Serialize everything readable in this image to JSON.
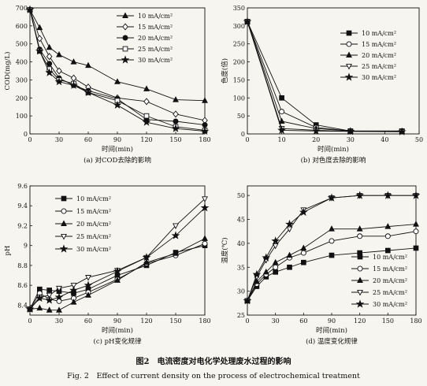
{
  "figure": {
    "caption_cn": "图2　电流密度对电化学处理废水过程的影响",
    "caption_en": "Fig. 2　Effect of current density on the process of electrochemical treatment"
  },
  "chart_data": [
    {
      "id": "a",
      "type": "line",
      "caption": "(a) 对COD去除的影响",
      "xlabel": "时间(min)",
      "ylabel": "COD(mg/L)",
      "xlim": [
        0,
        180
      ],
      "ylim": [
        0,
        700
      ],
      "xticks": [
        0,
        30,
        60,
        90,
        120,
        150,
        180
      ],
      "yticks": [
        0,
        100,
        200,
        300,
        400,
        500,
        600,
        700
      ],
      "legend_position": "top-right",
      "series": [
        {
          "name": "10 mA/cm²",
          "marker": "triangle-filled",
          "x": [
            0,
            10,
            20,
            30,
            45,
            60,
            90,
            120,
            150,
            180
          ],
          "y": [
            690,
            590,
            480,
            440,
            400,
            380,
            290,
            250,
            190,
            185
          ]
        },
        {
          "name": "15 mA/cm²",
          "marker": "diamond-open",
          "x": [
            0,
            10,
            20,
            30,
            45,
            60,
            90,
            120,
            150,
            180
          ],
          "y": [
            690,
            530,
            430,
            350,
            310,
            260,
            200,
            180,
            110,
            75
          ]
        },
        {
          "name": "20 mA/cm²",
          "marker": "circle-filled",
          "x": [
            0,
            10,
            20,
            30,
            45,
            60,
            90,
            120,
            150,
            180
          ],
          "y": [
            690,
            470,
            390,
            310,
            270,
            240,
            195,
            80,
            70,
            50
          ]
        },
        {
          "name": "25 mA/cm²",
          "marker": "square-open",
          "x": [
            0,
            10,
            20,
            30,
            45,
            60,
            90,
            120,
            150,
            180
          ],
          "y": [
            690,
            460,
            360,
            300,
            280,
            230,
            185,
            100,
            40,
            20
          ]
        },
        {
          "name": "30 mA/cm²",
          "marker": "star-filled",
          "x": [
            0,
            10,
            20,
            30,
            45,
            60,
            90,
            120,
            150,
            180
          ],
          "y": [
            690,
            460,
            340,
            290,
            270,
            230,
            160,
            65,
            30,
            15
          ]
        }
      ]
    },
    {
      "id": "b",
      "type": "line",
      "caption": "(b) 对色度去除的影响",
      "xlabel": "时间(min)",
      "ylabel": "色度(倍)",
      "xlim": [
        0,
        50
      ],
      "ylim": [
        0,
        350
      ],
      "xticks": [
        0,
        10,
        20,
        30,
        40,
        50
      ],
      "yticks": [
        0,
        50,
        100,
        150,
        200,
        250,
        300,
        350
      ],
      "legend_position": "top-right",
      "series": [
        {
          "name": "10 mA/cm²",
          "marker": "square-filled",
          "x": [
            0,
            10,
            20,
            30,
            45
          ],
          "y": [
            312,
            100,
            25,
            8,
            8
          ]
        },
        {
          "name": "15 mA/cm²",
          "marker": "circle-open",
          "x": [
            0,
            10,
            20,
            30,
            45
          ],
          "y": [
            312,
            62,
            18,
            8,
            8
          ]
        },
        {
          "name": "20 mA/cm²",
          "marker": "triangle-filled",
          "x": [
            0,
            10,
            20,
            30,
            45
          ],
          "y": [
            312,
            35,
            15,
            8,
            7
          ]
        },
        {
          "name": "25 mA/cm²",
          "marker": "triangle-down-open",
          "x": [
            0,
            10,
            20,
            30,
            45
          ],
          "y": [
            312,
            15,
            10,
            7,
            7
          ]
        },
        {
          "name": "30 mA/cm²",
          "marker": "star-filled",
          "x": [
            0,
            10,
            20,
            30,
            45
          ],
          "y": [
            312,
            10,
            8,
            7,
            6
          ]
        }
      ]
    },
    {
      "id": "c",
      "type": "line",
      "caption": "(c) pH变化规律",
      "xlabel": "时间(min)",
      "ylabel": "pH",
      "xlim": [
        0,
        180
      ],
      "ylim": [
        8.3,
        9.6
      ],
      "xticks": [
        0,
        30,
        60,
        90,
        120,
        150,
        180
      ],
      "yticks": [
        8.4,
        8.6,
        8.8,
        9.0,
        9.2,
        9.4,
        9.6
      ],
      "legend_position": "top-left",
      "series": [
        {
          "name": "10 mA/cm²",
          "marker": "square-filled",
          "x": [
            0,
            10,
            20,
            30,
            45,
            60,
            90,
            120,
            150,
            180
          ],
          "y": [
            8.36,
            8.56,
            8.55,
            8.54,
            8.52,
            8.56,
            8.7,
            8.8,
            8.93,
            9.0
          ]
        },
        {
          "name": "15 mA/cm²",
          "marker": "circle-open",
          "x": [
            0,
            10,
            20,
            30,
            45,
            60,
            90,
            120,
            150,
            180
          ],
          "y": [
            8.36,
            8.52,
            8.46,
            8.44,
            8.47,
            8.53,
            8.66,
            8.82,
            8.9,
            9.02
          ]
        },
        {
          "name": "20 mA/cm²",
          "marker": "triangle-filled",
          "x": [
            0,
            10,
            20,
            30,
            45,
            60,
            90,
            120,
            150,
            180
          ],
          "y": [
            8.36,
            8.37,
            8.35,
            8.35,
            8.43,
            8.5,
            8.65,
            8.83,
            8.92,
            9.07
          ]
        },
        {
          "name": "25 mA/cm²",
          "marker": "triangle-down-open",
          "x": [
            0,
            10,
            20,
            30,
            45,
            60,
            90,
            120,
            150,
            180
          ],
          "y": [
            8.36,
            8.48,
            8.5,
            8.57,
            8.6,
            8.68,
            8.75,
            8.88,
            9.2,
            9.47
          ]
        },
        {
          "name": "30 mA/cm²",
          "marker": "star-filled",
          "x": [
            0,
            10,
            20,
            30,
            45,
            60,
            90,
            120,
            150,
            180
          ],
          "y": [
            8.36,
            8.47,
            8.45,
            8.48,
            8.55,
            8.6,
            8.74,
            8.88,
            9.1,
            9.38
          ]
        }
      ]
    },
    {
      "id": "d",
      "type": "line",
      "caption": "(d) 温度变化规律",
      "xlabel": "时间(min)",
      "ylabel": "温度(℃)",
      "xlim": [
        0,
        180
      ],
      "ylim": [
        25,
        52
      ],
      "xticks": [
        0,
        30,
        60,
        90,
        120,
        150,
        180
      ],
      "yticks": [
        25,
        30,
        35,
        40,
        45,
        50
      ],
      "legend_position": "bottom-right",
      "series": [
        {
          "name": "10 mA/cm²",
          "marker": "square-filled",
          "x": [
            0,
            10,
            20,
            30,
            45,
            60,
            90,
            120,
            150,
            180
          ],
          "y": [
            28,
            31,
            33,
            34,
            35,
            36,
            37.5,
            38,
            38.5,
            39
          ]
        },
        {
          "name": "15 mA/cm²",
          "marker": "circle-open",
          "x": [
            0,
            10,
            20,
            30,
            45,
            60,
            90,
            120,
            150,
            180
          ],
          "y": [
            28,
            31.5,
            33.5,
            35,
            37,
            38,
            40.5,
            41.5,
            41.5,
            42.5
          ]
        },
        {
          "name": "20 mA/cm²",
          "marker": "triangle-filled",
          "x": [
            0,
            10,
            20,
            30,
            45,
            60,
            90,
            120,
            150,
            180
          ],
          "y": [
            28,
            32,
            34,
            36,
            37.5,
            39,
            43,
            43,
            43.5,
            44
          ]
        },
        {
          "name": "25 mA/cm²",
          "marker": "triangle-down-open",
          "x": [
            0,
            10,
            20,
            30,
            45,
            60,
            90,
            120,
            150,
            180
          ],
          "y": [
            28,
            33,
            36.5,
            39.5,
            43,
            47,
            49.5,
            50,
            50,
            50
          ]
        },
        {
          "name": "30 mA/cm²",
          "marker": "star-filled",
          "x": [
            0,
            10,
            20,
            30,
            45,
            60,
            90,
            120,
            150,
            180
          ],
          "y": [
            28,
            33.5,
            37,
            40.5,
            44,
            46.5,
            49.5,
            50,
            50,
            50
          ]
        }
      ]
    }
  ]
}
